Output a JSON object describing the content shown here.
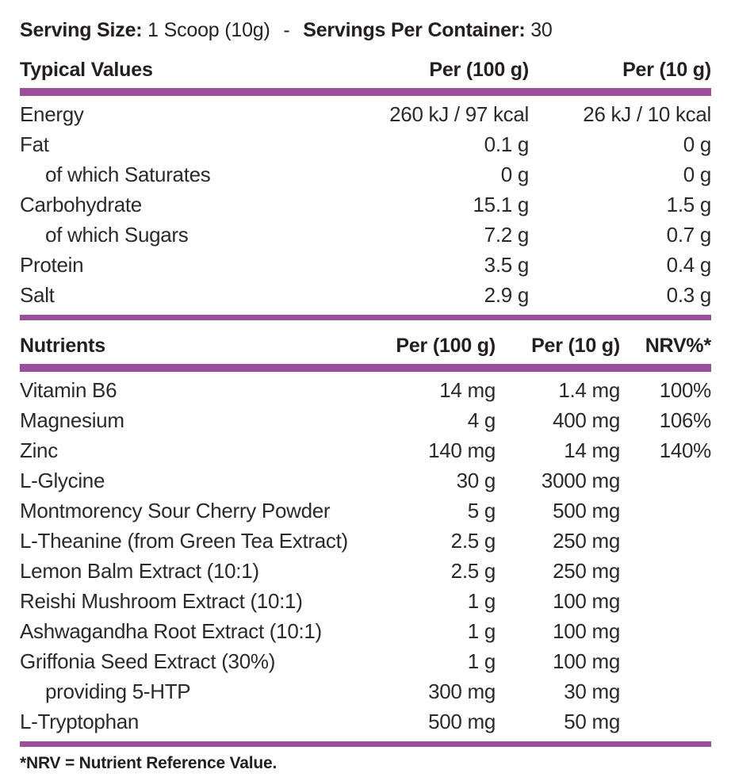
{
  "colors": {
    "accent": "#9B4E9B",
    "text": "#231F20"
  },
  "serving_line": {
    "serving_size_label": "Serving Size:",
    "serving_size_value": "1 Scoop (10g)",
    "separator": "-",
    "servings_per_container_label": "Servings Per Container:",
    "servings_per_container_value": "30"
  },
  "typical_values": {
    "header": {
      "label": "Typical Values",
      "col_per_100g": "Per (100 g)",
      "col_per_10g": "Per (10 g)"
    },
    "rows": [
      {
        "label": "Energy",
        "indent": false,
        "per_100g": "260 kJ / 97 kcal",
        "per_10g": "26 kJ / 10 kcal"
      },
      {
        "label": "Fat",
        "indent": false,
        "per_100g": "0.1 g",
        "per_10g": "0 g"
      },
      {
        "label": "of which Saturates",
        "indent": true,
        "per_100g": "0 g",
        "per_10g": "0 g"
      },
      {
        "label": "Carbohydrate",
        "indent": false,
        "per_100g": "15.1 g",
        "per_10g": "1.5 g"
      },
      {
        "label": "of which Sugars",
        "indent": true,
        "per_100g": "7.2 g",
        "per_10g": "0.7 g"
      },
      {
        "label": "Protein",
        "indent": false,
        "per_100g": "3.5 g",
        "per_10g": "0.4 g"
      },
      {
        "label": "Salt",
        "indent": false,
        "per_100g": "2.9 g",
        "per_10g": "0.3 g"
      }
    ]
  },
  "nutrients": {
    "header": {
      "label": "Nutrients",
      "col_per_100g": "Per (100 g)",
      "col_per_10g": "Per (10 g)",
      "col_nrv": "NRV%*"
    },
    "rows": [
      {
        "label": "Vitamin B6",
        "indent": false,
        "per_100g": "14 mg",
        "per_10g": "1.4 mg",
        "nrv": "100%"
      },
      {
        "label": "Magnesium",
        "indent": false,
        "per_100g": "4 g",
        "per_10g": "400 mg",
        "nrv": "106%"
      },
      {
        "label": "Zinc",
        "indent": false,
        "per_100g": "140 mg",
        "per_10g": "14 mg",
        "nrv": "140%"
      },
      {
        "label": "L-Glycine",
        "indent": false,
        "per_100g": "30 g",
        "per_10g": "3000 mg",
        "nrv": ""
      },
      {
        "label": "Montmorency Sour Cherry Powder",
        "indent": false,
        "per_100g": "5 g",
        "per_10g": "500 mg",
        "nrv": ""
      },
      {
        "label": "L-Theanine (from Green Tea Extract)",
        "indent": false,
        "per_100g": "2.5 g",
        "per_10g": "250 mg",
        "nrv": ""
      },
      {
        "label": "Lemon Balm Extract (10:1)",
        "indent": false,
        "per_100g": "2.5 g",
        "per_10g": "250 mg",
        "nrv": ""
      },
      {
        "label": "Reishi Mushroom Extract (10:1)",
        "indent": false,
        "per_100g": "1 g",
        "per_10g": "100 mg",
        "nrv": ""
      },
      {
        "label": "Ashwagandha Root Extract (10:1)",
        "indent": false,
        "per_100g": "1 g",
        "per_10g": "100 mg",
        "nrv": ""
      },
      {
        "label": "Griffonia Seed Extract (30%)",
        "indent": false,
        "per_100g": "1 g",
        "per_10g": "100 mg",
        "nrv": ""
      },
      {
        "label": "providing 5-HTP",
        "indent": true,
        "per_100g": "300 mg",
        "per_10g": "30 mg",
        "nrv": ""
      },
      {
        "label": "L-Tryptophan",
        "indent": false,
        "per_100g": "500 mg",
        "per_10g": "50 mg",
        "nrv": ""
      }
    ]
  },
  "footnote": "*NRV = Nutrient Reference Value."
}
